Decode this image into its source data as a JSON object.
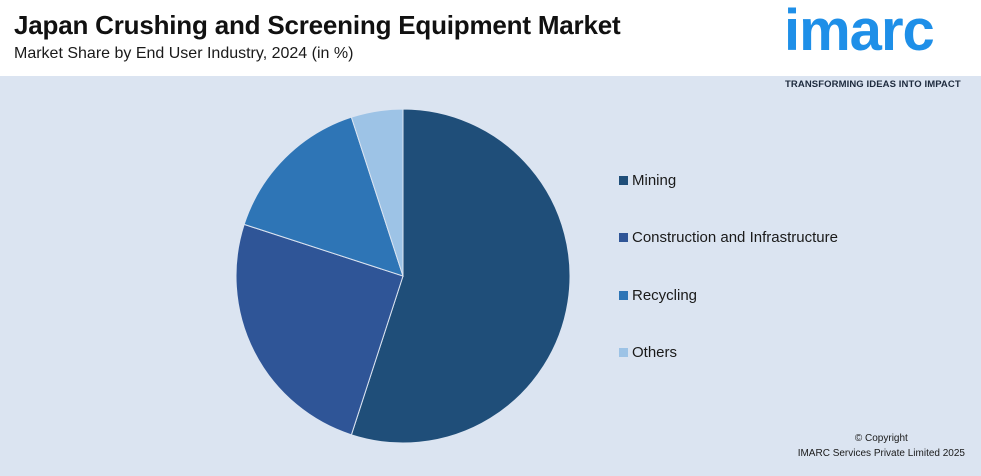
{
  "header": {
    "title": "Japan Crushing and Screening Equipment Market",
    "subtitle": "Market Share by End User Industry, 2024 (in %)"
  },
  "logo": {
    "word": "imarc",
    "tagline": "TRANSFORMING IDEAS INTO IMPACT",
    "color": "#1e8fe8"
  },
  "footer": {
    "line1": "© Copyright",
    "line2": "IMARC Services Private Limited 2025"
  },
  "chart_data": {
    "type": "pie",
    "title": "Japan Crushing and Screening Equipment Market",
    "subtitle": "Market Share by End User Industry, 2024 (in %)",
    "legend_position": "right",
    "slices": [
      {
        "label": "Mining",
        "value": 55,
        "color": "#1f4e79"
      },
      {
        "label": "Construction and Infrastructure",
        "value": 25,
        "color": "#2f5597"
      },
      {
        "label": "Recycling",
        "value": 15,
        "color": "#2e75b6"
      },
      {
        "label": "Others",
        "value": 5,
        "color": "#9dc3e6"
      }
    ]
  }
}
